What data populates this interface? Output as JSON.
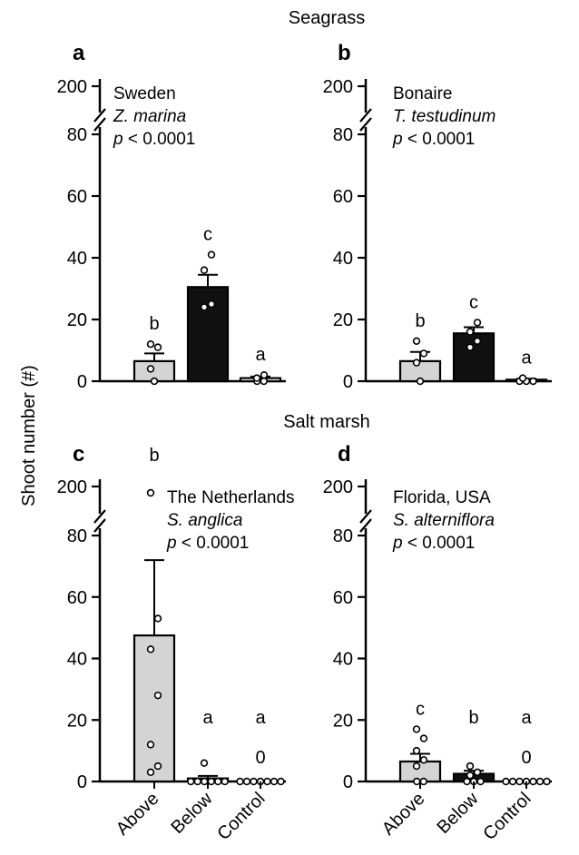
{
  "figure": {
    "y_axis_label": "Shoot number (#)",
    "section_titles": [
      "Seagrass",
      "Salt marsh"
    ]
  },
  "chart_data": [
    {
      "type": "bar",
      "panel": "a",
      "section": "Seagrass",
      "location": "Sweden",
      "species": "Z. marina",
      "p_value": "p < 0.0001",
      "categories": [
        "Above",
        "Below",
        "Control"
      ],
      "show_x_labels": false,
      "values": [
        6.5,
        30.5,
        1
      ],
      "sem": [
        2.5,
        4,
        0.5
      ],
      "points": [
        [
          0,
          4,
          11,
          12
        ],
        [
          24,
          25,
          36,
          41
        ],
        [
          0,
          0,
          1,
          2
        ]
      ],
      "significance": [
        "b",
        "c",
        "a"
      ],
      "zero_labels": [
        "",
        "",
        ""
      ],
      "bar_colors": [
        "#d4d4d4",
        "#111111",
        "#ffffff"
      ],
      "ylim": [
        0,
        80
      ],
      "y_ticks": [
        0,
        20,
        40,
        60,
        80
      ],
      "y_break_tick": 200
    },
    {
      "type": "bar",
      "panel": "b",
      "section": "Seagrass",
      "location": "Bonaire",
      "species": "T. testudinum",
      "p_value": "p < 0.0001",
      "categories": [
        "Above",
        "Below",
        "Control"
      ],
      "show_x_labels": false,
      "values": [
        6.5,
        15.5,
        0.5
      ],
      "sem": [
        3,
        2,
        0.3
      ],
      "points": [
        [
          0,
          6,
          9,
          13
        ],
        [
          11,
          13,
          16,
          19
        ],
        [
          0,
          0,
          0,
          1
        ]
      ],
      "significance": [
        "b",
        "c",
        "a"
      ],
      "zero_labels": [
        "",
        "",
        ""
      ],
      "bar_colors": [
        "#d4d4d4",
        "#111111",
        "#ffffff"
      ],
      "ylim": [
        0,
        80
      ],
      "y_ticks": [
        0,
        20,
        40,
        60,
        80
      ],
      "y_break_tick": 200
    },
    {
      "type": "bar",
      "panel": "c",
      "section": "Salt marsh",
      "location": "The Netherlands",
      "species": "S. anglica",
      "p_value": "p < 0.0001",
      "categories": [
        "Above",
        "Below",
        "Control"
      ],
      "show_x_labels": true,
      "values": [
        47.5,
        1,
        0
      ],
      "sem": [
        24.5,
        0.8,
        0
      ],
      "points": [
        [
          3,
          5,
          12,
          28,
          43,
          53
        ],
        [
          0,
          0,
          0,
          0,
          0,
          0,
          6
        ],
        [
          0,
          0,
          0,
          0,
          0,
          0,
          0
        ]
      ],
      "outlier_points": [
        [
          190
        ],
        [],
        []
      ],
      "significance": [
        "b",
        "a",
        "a"
      ],
      "zero_labels": [
        "",
        "",
        "0"
      ],
      "bar_colors": [
        "#d4d4d4",
        "#111111",
        "#ffffff"
      ],
      "ylim": [
        0,
        80
      ],
      "y_ticks": [
        0,
        20,
        40,
        60,
        80
      ],
      "y_break_tick": 200
    },
    {
      "type": "bar",
      "panel": "d",
      "section": "Salt marsh",
      "location": "Florida, USA",
      "species": "S. alterniflora",
      "p_value": "p < 0.0001",
      "categories": [
        "Above",
        "Below",
        "Control"
      ],
      "show_x_labels": true,
      "values": [
        6.5,
        2.5,
        0
      ],
      "sem": [
        2.5,
        1,
        0
      ],
      "points": [
        [
          0,
          0,
          5,
          7,
          10,
          14,
          17
        ],
        [
          0,
          0,
          0,
          2,
          3,
          5,
          5
        ],
        [
          0,
          0,
          0,
          0,
          0,
          0,
          0
        ]
      ],
      "significance": [
        "c",
        "b",
        "a"
      ],
      "zero_labels": [
        "",
        "",
        "0"
      ],
      "bar_colors": [
        "#d4d4d4",
        "#111111",
        "#ffffff"
      ],
      "ylim": [
        0,
        80
      ],
      "y_ticks": [
        0,
        20,
        40,
        60,
        80
      ],
      "y_break_tick": 200
    }
  ]
}
